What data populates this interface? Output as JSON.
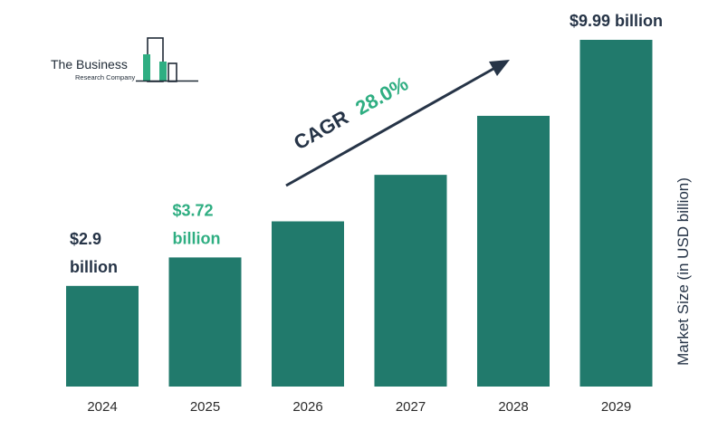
{
  "logo": {
    "line1": "The Business",
    "line2": "Research Company"
  },
  "chart_data": {
    "type": "bar",
    "categories": [
      "2024",
      "2025",
      "2026",
      "2027",
      "2028",
      "2029"
    ],
    "values": [
      2.9,
      3.72,
      4.76,
      6.1,
      7.8,
      9.99
    ],
    "ylabel": "Market Size (in USD billion)",
    "ylim": [
      0,
      10.3
    ],
    "grid": false,
    "legend": "none",
    "bar_color": "#217a6c",
    "annotations": {
      "cagr_label": "CAGR",
      "cagr_value": "28.0%"
    },
    "data_labels": [
      {
        "index": 0,
        "lines": [
          "$2.9",
          "billion"
        ],
        "color": "#263447"
      },
      {
        "index": 1,
        "lines": [
          "$3.72",
          "billion"
        ],
        "color": "#2fae82"
      },
      {
        "index": 5,
        "lines": [
          "$9.99 billion"
        ],
        "color": "#263447"
      }
    ]
  }
}
